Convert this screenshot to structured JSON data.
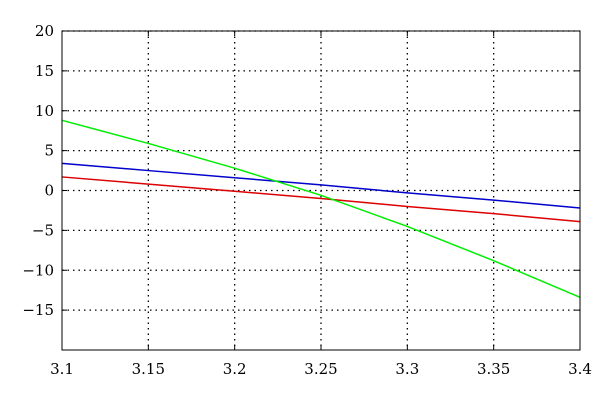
{
  "chart_data": {
    "type": "line",
    "title": "",
    "xlabel": "",
    "ylabel": "",
    "xlim": [
      3.1,
      3.4
    ],
    "ylim": [
      -20,
      20
    ],
    "grid": true,
    "x_ticks": [
      3.1,
      3.15,
      3.2,
      3.25,
      3.3,
      3.35,
      3.4
    ],
    "x_tick_labels": [
      "3.1",
      "3.15",
      "3.2",
      "3.25",
      "3.3",
      "3.35",
      "3.4"
    ],
    "y_ticks": [
      -15,
      -10,
      -5,
      0,
      5,
      10,
      15,
      20
    ],
    "y_tick_labels": [
      "−15",
      "−10",
      "−5",
      "0",
      "5",
      "10",
      "15",
      "20"
    ],
    "series": [
      {
        "color": "#0000cc",
        "x": [
          3.1,
          3.15,
          3.2,
          3.25,
          3.3,
          3.35,
          3.4
        ],
        "y": [
          3.4,
          2.5,
          1.6,
          0.7,
          -0.3,
          -1.2,
          -2.2
        ]
      },
      {
        "color": "#dd0000",
        "x": [
          3.1,
          3.15,
          3.2,
          3.25,
          3.3,
          3.35,
          3.4
        ],
        "y": [
          1.7,
          0.8,
          -0.1,
          -1.0,
          -2.0,
          -2.9,
          -3.9
        ]
      },
      {
        "color": "#00ee00",
        "x": [
          3.1,
          3.15,
          3.2,
          3.25,
          3.3,
          3.35,
          3.4
        ],
        "y": [
          8.8,
          5.9,
          2.8,
          -0.6,
          -4.5,
          -8.8,
          -13.4
        ]
      }
    ]
  }
}
